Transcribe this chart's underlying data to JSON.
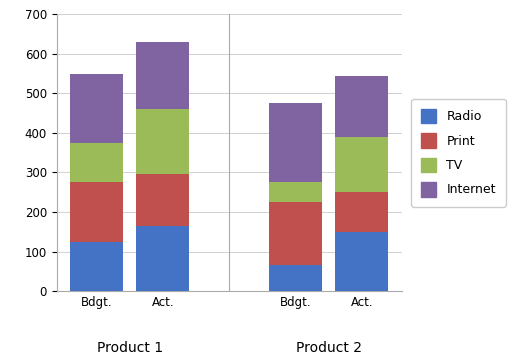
{
  "groups": [
    "Product 1",
    "Product 2"
  ],
  "bars": [
    "Bdgt.",
    "Act."
  ],
  "series": [
    "Radio",
    "Print",
    "TV",
    "Internet"
  ],
  "colors": [
    "#4472C4",
    "#C0504D",
    "#9BBB59",
    "#8064A2"
  ],
  "values": {
    "Product 1": {
      "Bdgt.": [
        125,
        150,
        100,
        175
      ],
      "Act.": [
        165,
        130,
        165,
        170
      ]
    },
    "Product 2": {
      "Bdgt.": [
        65,
        160,
        50,
        200
      ],
      "Act.": [
        150,
        100,
        140,
        155
      ]
    }
  },
  "ylim": [
    0,
    700
  ],
  "yticks": [
    0,
    100,
    200,
    300,
    400,
    500,
    600,
    700
  ],
  "bar_width": 0.8,
  "legend_labels": [
    "Radio",
    "Print",
    "TV",
    "Internet"
  ],
  "background_color": "#FFFFFF",
  "grid_color": "#D0D0D0",
  "label_fontsize": 9,
  "tick_fontsize": 8.5,
  "group_label_fontsize": 10,
  "positions": {
    "Product 1": {
      "Bdgt.": 1,
      "Act.": 2
    },
    "Product 2": {
      "Bdgt.": 4,
      "Act.": 5
    }
  },
  "group_centers": {
    "Product 1": 1.5,
    "Product 2": 4.5
  },
  "xlim": [
    0.4,
    5.6
  ],
  "separator_x": 3.0
}
